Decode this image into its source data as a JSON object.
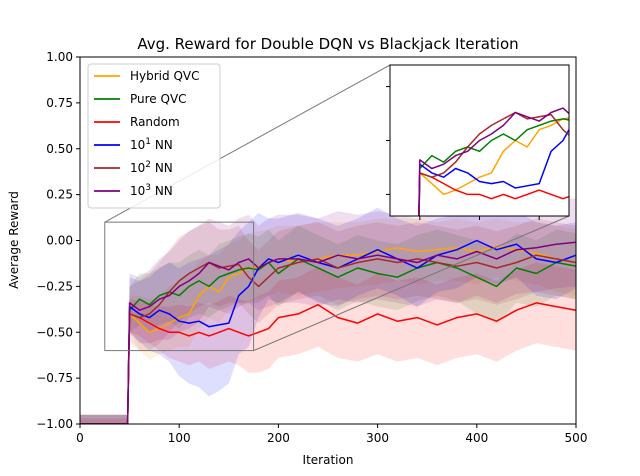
{
  "chart_data": {
    "type": "line",
    "title": "Avg. Reward for Double DQN vs Blackjack Iteration",
    "xlabel": "Iteration",
    "ylabel": "Average Reward",
    "xlim": [
      0,
      500
    ],
    "ylim": [
      -1.0,
      1.0
    ],
    "xticks": [
      "0",
      "100",
      "200",
      "300",
      "400",
      "500"
    ],
    "yticks": [
      "-1.00",
      "-0.75",
      "-0.50",
      "-0.25",
      "0.00",
      "0.25",
      "0.50",
      "0.75",
      "1.00"
    ],
    "grid": false,
    "legend_position": "top-left",
    "inset": {
      "x_range": [
        25,
        175
      ],
      "y_range": [
        -0.6,
        0.1
      ]
    },
    "series": [
      {
        "name": "Hybrid QVC",
        "color": "#ffa500",
        "x": [
          0,
          48,
          50,
          60,
          70,
          80,
          90,
          100,
          110,
          120,
          130,
          140,
          150,
          160,
          170,
          180,
          190,
          200,
          220,
          240,
          260,
          280,
          300,
          320,
          340,
          360,
          380,
          400,
          420,
          440,
          460,
          480,
          500
        ],
        "y": [
          -1.0,
          -1.0,
          -0.4,
          -0.45,
          -0.5,
          -0.48,
          -0.45,
          -0.42,
          -0.4,
          -0.3,
          -0.25,
          -0.28,
          -0.2,
          -0.18,
          -0.15,
          -0.14,
          -0.12,
          -0.1,
          -0.12,
          -0.1,
          -0.08,
          -0.08,
          -0.06,
          -0.04,
          -0.06,
          -0.05,
          -0.04,
          -0.06,
          -0.03,
          -0.05,
          -0.07,
          -0.1,
          -0.12
        ],
        "upper": [
          -0.95,
          -0.95,
          -0.3,
          -0.3,
          -0.32,
          -0.3,
          -0.25,
          -0.22,
          -0.18,
          -0.12,
          -0.08,
          -0.08,
          -0.02,
          0.0,
          0.04,
          0.05,
          0.06,
          0.08,
          0.08,
          0.1,
          0.1,
          0.1,
          0.12,
          0.12,
          0.12,
          0.1,
          0.12,
          0.1,
          0.12,
          0.1,
          0.1,
          0.08,
          0.06
        ],
        "lower": [
          -1.0,
          -1.0,
          -0.5,
          -0.6,
          -0.65,
          -0.62,
          -0.6,
          -0.58,
          -0.58,
          -0.48,
          -0.42,
          -0.45,
          -0.38,
          -0.36,
          -0.33,
          -0.32,
          -0.3,
          -0.28,
          -0.3,
          -0.28,
          -0.26,
          -0.25,
          -0.24,
          -0.22,
          -0.24,
          -0.22,
          -0.22,
          -0.24,
          -0.2,
          -0.22,
          -0.24,
          -0.28,
          -0.3
        ]
      },
      {
        "name": "Pure QVC",
        "color": "#008000",
        "x": [
          0,
          48,
          50,
          60,
          70,
          80,
          90,
          100,
          110,
          120,
          130,
          140,
          150,
          160,
          170,
          180,
          190,
          200,
          220,
          240,
          260,
          280,
          300,
          320,
          340,
          360,
          380,
          400,
          420,
          440,
          460,
          480,
          500
        ],
        "y": [
          -1.0,
          -1.0,
          -0.38,
          -0.32,
          -0.35,
          -0.3,
          -0.28,
          -0.3,
          -0.25,
          -0.22,
          -0.25,
          -0.2,
          -0.18,
          -0.16,
          -0.15,
          -0.16,
          -0.12,
          -0.18,
          -0.1,
          -0.15,
          -0.2,
          -0.15,
          -0.18,
          -0.2,
          -0.15,
          -0.12,
          -0.15,
          -0.2,
          -0.25,
          -0.15,
          -0.18,
          -0.12,
          -0.14
        ],
        "upper": [
          -0.95,
          -0.95,
          -0.25,
          -0.18,
          -0.18,
          -0.15,
          -0.12,
          -0.12,
          -0.08,
          -0.05,
          -0.08,
          -0.02,
          0.0,
          0.02,
          0.04,
          0.02,
          0.06,
          0.0,
          0.08,
          0.03,
          -0.02,
          0.03,
          0.0,
          -0.02,
          0.03,
          0.06,
          0.03,
          0.0,
          -0.05,
          0.04,
          0.0,
          0.06,
          0.04
        ],
        "lower": [
          -1.0,
          -1.0,
          -0.5,
          -0.46,
          -0.5,
          -0.46,
          -0.44,
          -0.48,
          -0.42,
          -0.4,
          -0.42,
          -0.38,
          -0.36,
          -0.34,
          -0.34,
          -0.34,
          -0.3,
          -0.36,
          -0.28,
          -0.33,
          -0.38,
          -0.33,
          -0.36,
          -0.38,
          -0.33,
          -0.3,
          -0.33,
          -0.4,
          -0.45,
          -0.34,
          -0.36,
          -0.3,
          -0.32
        ]
      },
      {
        "name": "Random",
        "color": "#ff0000",
        "x": [
          0,
          48,
          50,
          60,
          70,
          80,
          90,
          100,
          110,
          120,
          130,
          140,
          150,
          160,
          170,
          180,
          190,
          200,
          220,
          240,
          260,
          280,
          300,
          320,
          340,
          360,
          380,
          400,
          420,
          440,
          460,
          480,
          500
        ],
        "y": [
          -1.0,
          -1.0,
          -0.4,
          -0.42,
          -0.45,
          -0.48,
          -0.5,
          -0.5,
          -0.52,
          -0.5,
          -0.52,
          -0.5,
          -0.48,
          -0.5,
          -0.52,
          -0.5,
          -0.48,
          -0.42,
          -0.4,
          -0.35,
          -0.42,
          -0.45,
          -0.4,
          -0.44,
          -0.42,
          -0.46,
          -0.42,
          -0.4,
          -0.44,
          -0.38,
          -0.34,
          -0.36,
          -0.38
        ],
        "upper": [
          -0.97,
          -0.97,
          -0.32,
          -0.33,
          -0.35,
          -0.36,
          -0.36,
          -0.35,
          -0.36,
          -0.34,
          -0.35,
          -0.33,
          -0.3,
          -0.32,
          -0.33,
          -0.3,
          -0.28,
          -0.22,
          -0.2,
          -0.14,
          -0.2,
          -0.24,
          -0.18,
          -0.22,
          -0.2,
          -0.24,
          -0.2,
          -0.18,
          -0.22,
          -0.16,
          -0.12,
          -0.14,
          -0.16
        ],
        "lower": [
          -1.0,
          -1.0,
          -0.5,
          -0.52,
          -0.56,
          -0.6,
          -0.64,
          -0.66,
          -0.68,
          -0.66,
          -0.7,
          -0.68,
          -0.66,
          -0.68,
          -0.72,
          -0.72,
          -0.7,
          -0.64,
          -0.62,
          -0.58,
          -0.64,
          -0.66,
          -0.62,
          -0.66,
          -0.64,
          -0.68,
          -0.64,
          -0.62,
          -0.66,
          -0.6,
          -0.56,
          -0.58,
          -0.6
        ]
      },
      {
        "name": "10^1 NN",
        "color": "#0000ff",
        "x": [
          0,
          48,
          50,
          60,
          70,
          80,
          90,
          100,
          110,
          120,
          130,
          140,
          150,
          160,
          170,
          180,
          190,
          200,
          220,
          240,
          260,
          280,
          300,
          320,
          340,
          360,
          380,
          400,
          420,
          440,
          460,
          480,
          500
        ],
        "y": [
          -1.0,
          -1.0,
          -0.36,
          -0.4,
          -0.42,
          -0.38,
          -0.4,
          -0.44,
          -0.45,
          -0.44,
          -0.47,
          -0.46,
          -0.45,
          -0.3,
          -0.25,
          -0.15,
          -0.1,
          -0.12,
          -0.08,
          -0.12,
          -0.15,
          -0.1,
          -0.05,
          -0.1,
          -0.15,
          -0.08,
          -0.05,
          0.0,
          -0.05,
          -0.02,
          -0.1,
          -0.12,
          -0.08
        ],
        "upper": [
          -0.95,
          -0.95,
          -0.2,
          -0.22,
          -0.2,
          -0.15,
          -0.12,
          -0.15,
          -0.12,
          -0.1,
          -0.08,
          -0.05,
          -0.02,
          0.05,
          0.1,
          0.15,
          0.12,
          0.12,
          0.15,
          0.12,
          0.08,
          0.12,
          0.18,
          0.12,
          0.08,
          0.12,
          0.14,
          0.2,
          0.14,
          0.16,
          0.1,
          0.08,
          0.1
        ],
        "lower": [
          -1.0,
          -1.0,
          -0.5,
          -0.55,
          -0.6,
          -0.62,
          -0.66,
          -0.74,
          -0.78,
          -0.8,
          -0.85,
          -0.82,
          -0.78,
          -0.62,
          -0.58,
          -0.42,
          -0.32,
          -0.34,
          -0.28,
          -0.34,
          -0.36,
          -0.3,
          -0.26,
          -0.3,
          -0.36,
          -0.28,
          -0.26,
          -0.2,
          -0.24,
          -0.2,
          -0.3,
          -0.32,
          -0.26
        ]
      },
      {
        "name": "10^2 NN",
        "color": "#a52a2a",
        "x": [
          0,
          48,
          50,
          60,
          70,
          80,
          90,
          100,
          110,
          120,
          130,
          140,
          150,
          160,
          170,
          180,
          190,
          200,
          220,
          240,
          260,
          280,
          300,
          320,
          340,
          360,
          380,
          400,
          420,
          440,
          460,
          480,
          500
        ],
        "y": [
          -1.0,
          -1.0,
          -0.4,
          -0.42,
          -0.4,
          -0.35,
          -0.28,
          -0.22,
          -0.18,
          -0.15,
          -0.12,
          -0.15,
          -0.14,
          -0.13,
          -0.2,
          -0.25,
          -0.2,
          -0.15,
          -0.12,
          -0.1,
          -0.15,
          -0.12,
          -0.1,
          -0.12,
          -0.1,
          -0.12,
          -0.14,
          -0.12,
          -0.15,
          -0.12,
          -0.08,
          -0.1,
          -0.12
        ],
        "upper": [
          -0.95,
          -0.95,
          -0.25,
          -0.22,
          -0.18,
          -0.12,
          -0.05,
          0.02,
          0.05,
          0.08,
          0.1,
          0.06,
          0.06,
          0.08,
          0.0,
          -0.05,
          0.0,
          0.05,
          0.08,
          0.1,
          0.05,
          0.08,
          0.1,
          0.08,
          0.1,
          0.08,
          0.06,
          0.08,
          0.05,
          0.08,
          0.12,
          0.1,
          0.08
        ],
        "lower": [
          -1.0,
          -1.0,
          -0.55,
          -0.6,
          -0.6,
          -0.56,
          -0.5,
          -0.44,
          -0.4,
          -0.36,
          -0.34,
          -0.36,
          -0.34,
          -0.34,
          -0.4,
          -0.45,
          -0.4,
          -0.35,
          -0.32,
          -0.3,
          -0.35,
          -0.32,
          -0.3,
          -0.32,
          -0.3,
          -0.32,
          -0.34,
          -0.32,
          -0.35,
          -0.32,
          -0.28,
          -0.3,
          -0.32
        ]
      },
      {
        "name": "10^3 NN",
        "color": "#800080",
        "x": [
          0,
          48,
          50,
          60,
          70,
          80,
          90,
          100,
          110,
          120,
          130,
          140,
          150,
          160,
          170,
          180,
          190,
          200,
          220,
          240,
          260,
          280,
          300,
          320,
          340,
          360,
          380,
          400,
          420,
          440,
          460,
          480,
          500
        ],
        "y": [
          -1.0,
          -1.0,
          -0.34,
          -0.38,
          -0.36,
          -0.32,
          -0.3,
          -0.25,
          -0.22,
          -0.18,
          -0.12,
          -0.14,
          -0.16,
          -0.12,
          -0.1,
          -0.15,
          -0.12,
          -0.1,
          -0.1,
          -0.12,
          -0.08,
          -0.1,
          -0.08,
          -0.1,
          -0.12,
          -0.08,
          -0.1,
          -0.06,
          -0.1,
          -0.05,
          -0.04,
          -0.02,
          -0.01
        ],
        "upper": [
          -0.95,
          -0.95,
          -0.18,
          -0.2,
          -0.16,
          -0.1,
          -0.06,
          0.0,
          0.05,
          0.08,
          0.12,
          0.1,
          0.08,
          0.12,
          0.14,
          0.08,
          0.12,
          0.14,
          0.14,
          0.12,
          0.16,
          0.14,
          0.16,
          0.14,
          0.12,
          0.16,
          0.14,
          0.18,
          0.14,
          0.19,
          0.2,
          0.22,
          0.23
        ],
        "lower": [
          -1.0,
          -1.0,
          -0.5,
          -0.56,
          -0.56,
          -0.54,
          -0.54,
          -0.5,
          -0.48,
          -0.44,
          -0.36,
          -0.38,
          -0.4,
          -0.36,
          -0.34,
          -0.38,
          -0.36,
          -0.34,
          -0.34,
          -0.36,
          -0.32,
          -0.34,
          -0.32,
          -0.34,
          -0.36,
          -0.32,
          -0.34,
          -0.3,
          -0.34,
          -0.29,
          -0.28,
          -0.26,
          -0.25
        ]
      }
    ]
  }
}
